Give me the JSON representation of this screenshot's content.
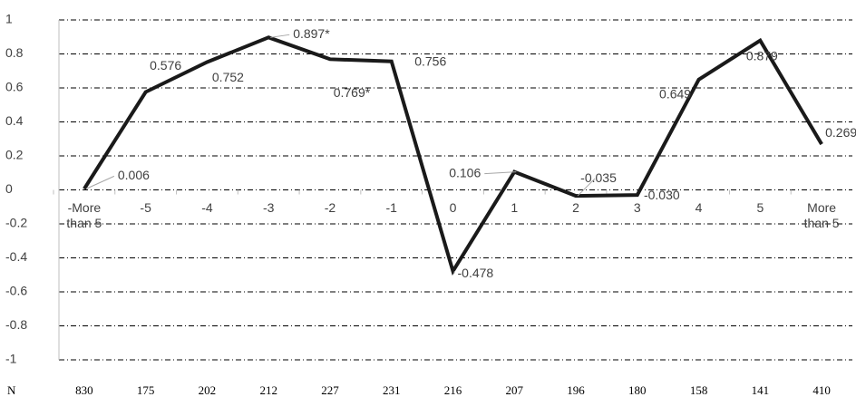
{
  "chart_data": {
    "type": "line",
    "categories": [
      "-More than 5",
      "-5",
      "-4",
      "-3",
      "-2",
      "-1",
      "0",
      "1",
      "2",
      "3",
      "4",
      "5",
      "More than 5"
    ],
    "series": [
      {
        "color": "#1a1a1a",
        "values": [
          0.006,
          0.576,
          0.752,
          0.897,
          0.769,
          0.756,
          -0.478,
          0.106,
          -0.035,
          -0.03,
          0.649,
          0.879,
          0.269
        ],
        "value_labels": [
          "0.006",
          "0.576",
          "0.752",
          "0.897*",
          "0.769*",
          "0.756",
          "-0.478",
          "0.106",
          "-0.035",
          "-0.030",
          "0.649",
          "0.879",
          "0.269"
        ]
      }
    ],
    "ylim": [
      -1,
      1
    ],
    "yticks": [
      -1,
      -0.8,
      -0.6,
      -0.4,
      -0.2,
      0,
      0.2,
      0.4,
      0.6,
      0.8,
      1
    ],
    "grid": true,
    "n_label": "N",
    "n_values": [
      "830",
      "175",
      "202",
      "212",
      "227",
      "231",
      "216",
      "207",
      "196",
      "180",
      "158",
      "141",
      "410"
    ]
  }
}
